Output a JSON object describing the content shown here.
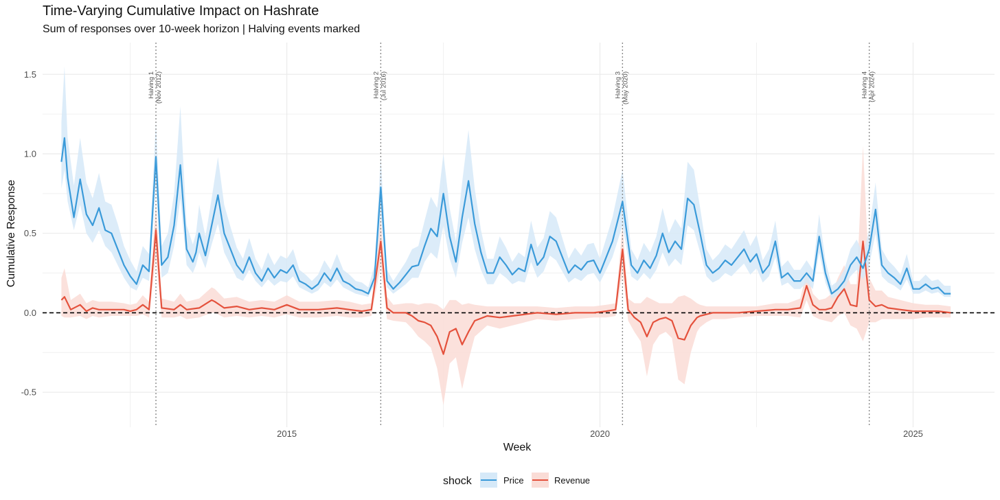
{
  "chart_data": {
    "type": "line",
    "title": "Time-Varying Cumulative Impact on Hashrate",
    "subtitle": "Sum of responses over 10-week horizon | Halving events marked",
    "xlabel": "Week",
    "ylabel": "Cumulative Response",
    "xlim": [
      2011.1,
      2026.3
    ],
    "ylim": [
      -0.72,
      1.7
    ],
    "x_ticks": [
      {
        "value": 2015,
        "label": "2015"
      },
      {
        "value": 2020,
        "label": "2020"
      },
      {
        "value": 2025,
        "label": "2025"
      }
    ],
    "y_ticks": [
      {
        "value": -0.5,
        "label": "-0.5"
      },
      {
        "value": 0.0,
        "label": "0.0"
      },
      {
        "value": 0.5,
        "label": "0.5"
      },
      {
        "value": 1.0,
        "label": "1.0"
      },
      {
        "value": 1.5,
        "label": "1.5"
      }
    ],
    "grid": true,
    "zero_line": "dashed",
    "legend": {
      "title": "shock",
      "position": "bottom"
    },
    "halvings": [
      {
        "x": 2012.91,
        "line1": "Halving 1",
        "line2": "(Nov 2012)"
      },
      {
        "x": 2016.5,
        "line1": "Halving 2",
        "line2": "(Jul 2016)"
      },
      {
        "x": 2020.36,
        "line1": "Halving 3",
        "line2": "(May 2020)"
      },
      {
        "x": 2024.3,
        "line1": "Halving 4",
        "line2": "(Apr 2024)"
      }
    ],
    "series": [
      {
        "name": "Price",
        "color": "#3A9AD9",
        "band_color": "#D6E9F8",
        "x": [
          2011.4,
          2011.45,
          2011.5,
          2011.6,
          2011.7,
          2011.8,
          2011.9,
          2012.0,
          2012.1,
          2012.2,
          2012.3,
          2012.4,
          2012.5,
          2012.6,
          2012.7,
          2012.8,
          2012.91,
          2013.0,
          2013.1,
          2013.2,
          2013.3,
          2013.4,
          2013.5,
          2013.55,
          2013.6,
          2013.7,
          2013.8,
          2013.9,
          2014.0,
          2014.1,
          2014.2,
          2014.3,
          2014.4,
          2014.5,
          2014.6,
          2014.7,
          2014.8,
          2014.9,
          2015.0,
          2015.1,
          2015.2,
          2015.3,
          2015.4,
          2015.5,
          2015.6,
          2015.7,
          2015.8,
          2015.9,
          2016.0,
          2016.1,
          2016.2,
          2016.3,
          2016.4,
          2016.5,
          2016.6,
          2016.7,
          2016.8,
          2016.9,
          2017.0,
          2017.1,
          2017.2,
          2017.3,
          2017.4,
          2017.5,
          2017.6,
          2017.7,
          2017.8,
          2017.9,
          2018.0,
          2018.1,
          2018.2,
          2018.3,
          2018.4,
          2018.5,
          2018.6,
          2018.7,
          2018.8,
          2018.9,
          2019.0,
          2019.1,
          2019.2,
          2019.3,
          2019.4,
          2019.5,
          2019.6,
          2019.7,
          2019.8,
          2019.9,
          2020.0,
          2020.1,
          2020.2,
          2020.36,
          2020.5,
          2020.6,
          2020.7,
          2020.8,
          2020.9,
          2021.0,
          2021.1,
          2021.2,
          2021.3,
          2021.4,
          2021.5,
          2021.6,
          2021.7,
          2021.8,
          2021.9,
          2022.0,
          2022.1,
          2022.2,
          2022.3,
          2022.4,
          2022.5,
          2022.6,
          2022.7,
          2022.8,
          2022.9,
          2023.0,
          2023.1,
          2023.2,
          2023.3,
          2023.4,
          2023.5,
          2023.6,
          2023.7,
          2023.8,
          2023.9,
          2024.0,
          2024.1,
          2024.2,
          2024.3,
          2024.4,
          2024.5,
          2024.6,
          2024.7,
          2024.8,
          2024.9,
          2025.0,
          2025.1,
          2025.2,
          2025.3,
          2025.4,
          2025.5,
          2025.6
        ],
        "y": [
          0.95,
          1.1,
          0.85,
          0.6,
          0.84,
          0.62,
          0.55,
          0.66,
          0.52,
          0.5,
          0.4,
          0.3,
          0.23,
          0.18,
          0.3,
          0.26,
          0.98,
          0.3,
          0.35,
          0.55,
          0.93,
          0.4,
          0.32,
          0.38,
          0.5,
          0.36,
          0.55,
          0.74,
          0.5,
          0.4,
          0.3,
          0.25,
          0.35,
          0.25,
          0.2,
          0.28,
          0.22,
          0.27,
          0.25,
          0.3,
          0.2,
          0.18,
          0.15,
          0.18,
          0.25,
          0.2,
          0.28,
          0.2,
          0.18,
          0.15,
          0.14,
          0.12,
          0.22,
          0.79,
          0.2,
          0.15,
          0.19,
          0.24,
          0.29,
          0.3,
          0.42,
          0.53,
          0.48,
          0.75,
          0.48,
          0.32,
          0.6,
          0.83,
          0.56,
          0.38,
          0.25,
          0.25,
          0.35,
          0.3,
          0.24,
          0.28,
          0.26,
          0.43,
          0.3,
          0.35,
          0.48,
          0.45,
          0.35,
          0.25,
          0.3,
          0.27,
          0.32,
          0.33,
          0.25,
          0.35,
          0.45,
          0.7,
          0.3,
          0.25,
          0.33,
          0.28,
          0.36,
          0.5,
          0.38,
          0.45,
          0.4,
          0.72,
          0.68,
          0.5,
          0.3,
          0.25,
          0.28,
          0.33,
          0.3,
          0.35,
          0.4,
          0.32,
          0.37,
          0.25,
          0.3,
          0.45,
          0.22,
          0.25,
          0.2,
          0.2,
          0.25,
          0.2,
          0.48,
          0.25,
          0.12,
          0.15,
          0.2,
          0.3,
          0.35,
          0.28,
          0.4,
          0.65,
          0.3,
          0.25,
          0.22,
          0.18,
          0.28,
          0.15,
          0.15,
          0.18,
          0.15,
          0.16,
          0.12,
          0.12
        ],
        "lower": [
          0.78,
          0.9,
          0.7,
          0.52,
          0.68,
          0.5,
          0.44,
          0.52,
          0.42,
          0.38,
          0.3,
          0.22,
          0.16,
          0.14,
          0.22,
          0.2,
          0.8,
          0.22,
          0.25,
          0.42,
          0.72,
          0.3,
          0.25,
          0.3,
          0.38,
          0.28,
          0.43,
          0.56,
          0.38,
          0.3,
          0.22,
          0.2,
          0.27,
          0.2,
          0.16,
          0.21,
          0.17,
          0.2,
          0.19,
          0.23,
          0.16,
          0.14,
          0.12,
          0.14,
          0.19,
          0.16,
          0.21,
          0.16,
          0.14,
          0.12,
          0.11,
          0.1,
          0.18,
          0.62,
          0.16,
          0.12,
          0.15,
          0.18,
          0.22,
          0.22,
          0.32,
          0.38,
          0.34,
          0.55,
          0.34,
          0.22,
          0.44,
          0.6,
          0.4,
          0.27,
          0.18,
          0.18,
          0.25,
          0.22,
          0.18,
          0.2,
          0.19,
          0.32,
          0.22,
          0.26,
          0.36,
          0.33,
          0.26,
          0.19,
          0.22,
          0.2,
          0.24,
          0.25,
          0.19,
          0.27,
          0.35,
          0.55,
          0.23,
          0.2,
          0.25,
          0.21,
          0.27,
          0.38,
          0.29,
          0.34,
          0.3,
          0.55,
          0.52,
          0.38,
          0.23,
          0.19,
          0.21,
          0.25,
          0.23,
          0.27,
          0.31,
          0.24,
          0.28,
          0.19,
          0.23,
          0.35,
          0.17,
          0.19,
          0.15,
          0.15,
          0.19,
          0.15,
          0.38,
          0.19,
          0.09,
          0.11,
          0.15,
          0.23,
          0.27,
          0.21,
          0.3,
          0.5,
          0.23,
          0.19,
          0.17,
          0.14,
          0.21,
          0.12,
          0.12,
          0.14,
          0.12,
          0.13,
          0.1,
          0.1
        ],
        "upper": [
          1.2,
          1.55,
          1.1,
          0.8,
          1.1,
          0.82,
          0.72,
          0.88,
          0.7,
          0.68,
          0.56,
          0.42,
          0.33,
          0.26,
          0.42,
          0.37,
          1.2,
          0.42,
          0.5,
          0.75,
          1.3,
          0.55,
          0.43,
          0.5,
          0.68,
          0.48,
          0.72,
          0.98,
          0.68,
          0.54,
          0.41,
          0.34,
          0.47,
          0.34,
          0.27,
          0.38,
          0.3,
          0.36,
          0.34,
          0.4,
          0.27,
          0.24,
          0.2,
          0.24,
          0.33,
          0.27,
          0.37,
          0.27,
          0.24,
          0.2,
          0.19,
          0.16,
          0.3,
          0.98,
          0.27,
          0.2,
          0.26,
          0.32,
          0.4,
          0.42,
          0.58,
          0.73,
          0.66,
          1.0,
          0.66,
          0.45,
          0.82,
          1.15,
          0.78,
          0.52,
          0.34,
          0.34,
          0.48,
          0.41,
          0.32,
          0.38,
          0.35,
          0.58,
          0.41,
          0.47,
          0.64,
          0.6,
          0.47,
          0.34,
          0.41,
          0.36,
          0.43,
          0.44,
          0.34,
          0.47,
          0.6,
          0.9,
          0.4,
          0.33,
          0.44,
          0.38,
          0.48,
          0.66,
          0.5,
          0.59,
          0.53,
          0.95,
          0.9,
          0.66,
          0.4,
          0.33,
          0.37,
          0.43,
          0.4,
          0.46,
          0.52,
          0.42,
          0.49,
          0.33,
          0.4,
          0.58,
          0.29,
          0.33,
          0.27,
          0.27,
          0.33,
          0.27,
          0.62,
          0.33,
          0.17,
          0.2,
          0.27,
          0.4,
          0.46,
          0.37,
          0.52,
          0.82,
          0.4,
          0.33,
          0.29,
          0.24,
          0.37,
          0.2,
          0.2,
          0.24,
          0.2,
          0.21,
          0.17,
          0.17
        ]
      },
      {
        "name": "Revenue",
        "color": "#E4513C",
        "band_color": "#FADCD6",
        "x": [
          2011.4,
          2011.45,
          2011.55,
          2011.7,
          2011.8,
          2011.9,
          2012.0,
          2012.2,
          2012.4,
          2012.5,
          2012.6,
          2012.7,
          2012.8,
          2012.91,
          2013.0,
          2013.2,
          2013.3,
          2013.4,
          2013.6,
          2013.8,
          2013.85,
          2014.0,
          2014.2,
          2014.4,
          2014.6,
          2014.8,
          2015.0,
          2015.2,
          2015.5,
          2015.8,
          2016.0,
          2016.2,
          2016.35,
          2016.5,
          2016.6,
          2016.7,
          2016.9,
          2017.0,
          2017.1,
          2017.2,
          2017.3,
          2017.4,
          2017.5,
          2017.6,
          2017.7,
          2017.8,
          2017.9,
          2018.0,
          2018.2,
          2018.4,
          2018.6,
          2018.8,
          2019.0,
          2019.3,
          2019.6,
          2019.9,
          2020.1,
          2020.25,
          2020.36,
          2020.45,
          2020.55,
          2020.65,
          2020.75,
          2020.85,
          2020.95,
          2021.05,
          2021.15,
          2021.25,
          2021.35,
          2021.45,
          2021.55,
          2021.6,
          2021.7,
          2021.8,
          2021.9,
          2022.0,
          2022.2,
          2022.5,
          2022.8,
          2023.0,
          2023.2,
          2023.3,
          2023.4,
          2023.5,
          2023.6,
          2023.7,
          2023.8,
          2023.9,
          2024.0,
          2024.1,
          2024.2,
          2024.3,
          2024.4,
          2024.5,
          2024.6,
          2024.8,
          2025.0,
          2025.2,
          2025.4,
          2025.6
        ],
        "y": [
          0.08,
          0.1,
          0.02,
          0.05,
          0.01,
          0.03,
          0.02,
          0.02,
          0.02,
          0.01,
          0.02,
          0.05,
          0.02,
          0.52,
          0.03,
          0.02,
          0.05,
          0.02,
          0.03,
          0.08,
          0.07,
          0.03,
          0.04,
          0.02,
          0.03,
          0.02,
          0.05,
          0.02,
          0.02,
          0.03,
          0.02,
          0.01,
          0.02,
          0.45,
          0.03,
          0.0,
          0.0,
          -0.02,
          -0.05,
          -0.06,
          -0.08,
          -0.15,
          -0.26,
          -0.12,
          -0.1,
          -0.2,
          -0.12,
          -0.05,
          -0.02,
          -0.03,
          -0.02,
          -0.01,
          0.0,
          -0.01,
          0.0,
          0.0,
          0.01,
          0.02,
          0.4,
          0.02,
          -0.03,
          -0.06,
          -0.15,
          -0.06,
          -0.04,
          -0.03,
          -0.05,
          -0.16,
          -0.17,
          -0.08,
          -0.03,
          -0.02,
          -0.01,
          0.0,
          0.0,
          0.0,
          0.0,
          0.01,
          0.02,
          0.02,
          0.03,
          0.17,
          0.05,
          0.02,
          0.02,
          0.03,
          0.1,
          0.15,
          0.05,
          0.04,
          0.45,
          0.08,
          0.04,
          0.05,
          0.03,
          0.02,
          0.01,
          0.01,
          0.01,
          0.0
        ],
        "lower": [
          -0.02,
          -0.03,
          -0.03,
          -0.02,
          -0.04,
          -0.02,
          -0.03,
          -0.02,
          -0.02,
          -0.02,
          -0.02,
          -0.01,
          -0.03,
          0.35,
          -0.03,
          -0.03,
          -0.02,
          -0.04,
          -0.03,
          0.0,
          0.0,
          -0.03,
          -0.02,
          -0.03,
          -0.02,
          -0.03,
          -0.01,
          -0.03,
          -0.03,
          -0.02,
          -0.03,
          -0.03,
          -0.02,
          0.3,
          -0.04,
          -0.05,
          -0.06,
          -0.1,
          -0.15,
          -0.18,
          -0.22,
          -0.35,
          -0.58,
          -0.32,
          -0.28,
          -0.48,
          -0.3,
          -0.15,
          -0.08,
          -0.1,
          -0.08,
          -0.06,
          -0.04,
          -0.05,
          -0.04,
          -0.03,
          -0.03,
          -0.02,
          0.25,
          -0.05,
          -0.12,
          -0.18,
          -0.4,
          -0.2,
          -0.14,
          -0.12,
          -0.16,
          -0.42,
          -0.45,
          -0.25,
          -0.12,
          -0.09,
          -0.06,
          -0.04,
          -0.04,
          -0.04,
          -0.03,
          -0.02,
          -0.02,
          -0.02,
          -0.03,
          0.08,
          -0.02,
          -0.04,
          -0.05,
          -0.06,
          -0.02,
          0.0,
          -0.08,
          -0.1,
          -0.18,
          -0.06,
          -0.06,
          -0.04,
          -0.04,
          -0.04,
          -0.04,
          -0.03,
          -0.03,
          -0.03
        ],
        "upper": [
          0.22,
          0.28,
          0.08,
          0.12,
          0.06,
          0.08,
          0.07,
          0.07,
          0.06,
          0.05,
          0.06,
          0.11,
          0.07,
          0.7,
          0.09,
          0.07,
          0.12,
          0.07,
          0.09,
          0.16,
          0.15,
          0.09,
          0.1,
          0.07,
          0.08,
          0.07,
          0.11,
          0.07,
          0.07,
          0.08,
          0.07,
          0.05,
          0.06,
          0.6,
          0.1,
          0.05,
          0.06,
          0.06,
          0.05,
          0.06,
          0.06,
          0.05,
          0.02,
          0.08,
          0.08,
          0.05,
          0.06,
          0.05,
          0.04,
          0.04,
          0.04,
          0.04,
          0.04,
          0.03,
          0.04,
          0.04,
          0.05,
          0.06,
          0.55,
          0.09,
          0.06,
          0.06,
          0.1,
          0.08,
          0.06,
          0.06,
          0.06,
          0.1,
          0.11,
          0.09,
          0.06,
          0.05,
          0.04,
          0.04,
          0.04,
          0.04,
          0.04,
          0.04,
          0.06,
          0.06,
          0.09,
          0.26,
          0.12,
          0.08,
          0.09,
          0.12,
          0.22,
          0.3,
          0.18,
          0.18,
          1.05,
          0.22,
          0.14,
          0.14,
          0.1,
          0.08,
          0.06,
          0.05,
          0.05,
          0.04
        ]
      }
    ]
  }
}
